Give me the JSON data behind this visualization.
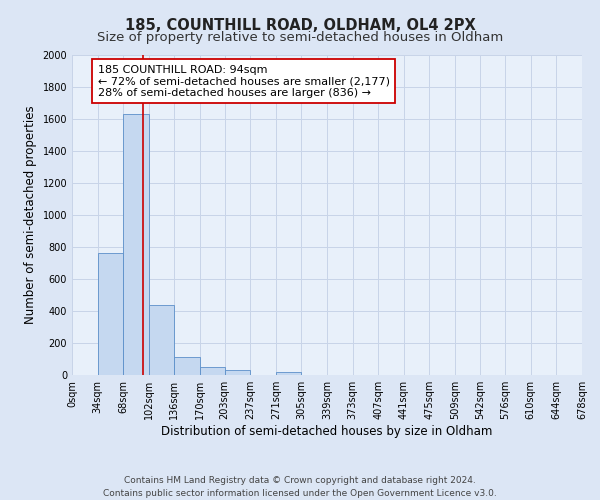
{
  "title": "185, COUNTHILL ROAD, OLDHAM, OL4 2PX",
  "subtitle": "Size of property relative to semi-detached houses in Oldham",
  "xlabel": "Distribution of semi-detached houses by size in Oldham",
  "ylabel": "Number of semi-detached properties",
  "bin_edges": [
    0,
    34,
    68,
    102,
    136,
    170,
    203,
    237,
    271,
    305,
    339,
    373,
    407,
    441,
    475,
    509,
    542,
    576,
    610,
    644,
    678
  ],
  "bar_heights": [
    0,
    760,
    1630,
    440,
    110,
    50,
    30,
    0,
    20,
    0,
    0,
    0,
    0,
    0,
    0,
    0,
    0,
    0,
    0,
    0
  ],
  "bar_color": "#c5d8f0",
  "bar_edge_color": "#5b8fc9",
  "property_line_x": 94,
  "property_line_color": "#cc0000",
  "ylim": [
    0,
    2000
  ],
  "yticks": [
    0,
    200,
    400,
    600,
    800,
    1000,
    1200,
    1400,
    1600,
    1800,
    2000
  ],
  "xtick_labels": [
    "0sqm",
    "34sqm",
    "68sqm",
    "102sqm",
    "136sqm",
    "170sqm",
    "203sqm",
    "237sqm",
    "271sqm",
    "305sqm",
    "339sqm",
    "373sqm",
    "407sqm",
    "441sqm",
    "475sqm",
    "509sqm",
    "542sqm",
    "576sqm",
    "610sqm",
    "644sqm",
    "678sqm"
  ],
  "annotation_box_text": "185 COUNTHILL ROAD: 94sqm\n← 72% of semi-detached houses are smaller (2,177)\n28% of semi-detached houses are larger (836) →",
  "footer_line1": "Contains HM Land Registry data © Crown copyright and database right 2024.",
  "footer_line2": "Contains public sector information licensed under the Open Government Licence v3.0.",
  "bg_color": "#dce6f5",
  "plot_bg_color": "#e8f0fa",
  "grid_color": "#c8d4e8",
  "title_fontsize": 10.5,
  "subtitle_fontsize": 9.5,
  "axis_label_fontsize": 8.5,
  "tick_fontsize": 7,
  "annotation_fontsize": 8,
  "footer_fontsize": 6.5
}
